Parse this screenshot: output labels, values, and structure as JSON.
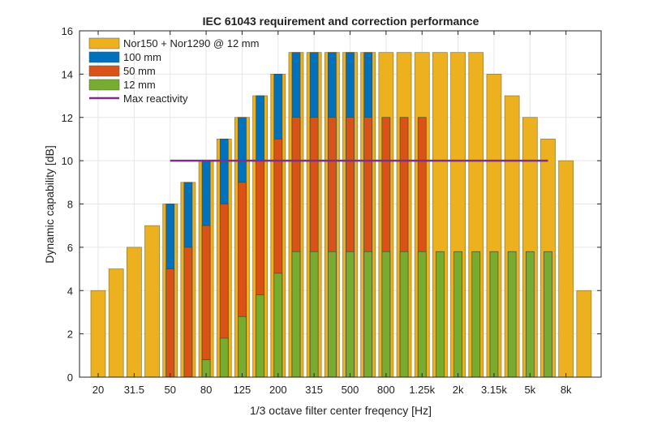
{
  "chart_data": {
    "type": "bar",
    "title": "IEC 61043 requirement and correction performance",
    "xlabel": "1/3 octave filter center freqency [Hz]",
    "ylabel": "Dynamic capability [dB]",
    "ylim": [
      0,
      16
    ],
    "yticks": [
      0,
      2,
      4,
      6,
      8,
      10,
      12,
      14,
      16
    ],
    "grid": true,
    "legend_placement": "top-left",
    "categories": [
      "20",
      "25",
      "31.5",
      "40",
      "50",
      "63",
      "80",
      "100",
      "125",
      "160",
      "200",
      "250",
      "315",
      "400",
      "500",
      "630",
      "800",
      "1k",
      "1.25k",
      "1.6k",
      "2k",
      "2.5k",
      "3.15k",
      "4k",
      "5k",
      "6.3k",
      "8k",
      "10k"
    ],
    "xtick_labels": [
      "20",
      "31.5",
      "50",
      "80",
      "125",
      "200",
      "315",
      "500",
      "800",
      "1.25k",
      "2k",
      "3.15k",
      "5k",
      "8k"
    ],
    "series": [
      {
        "name": "Nor150 + Nor1290 @ 12 mm",
        "color": "#EDB120",
        "style": "wide",
        "values": [
          4,
          5,
          6,
          7,
          8,
          9,
          10,
          11,
          12,
          13,
          14,
          15,
          15,
          15,
          15,
          15,
          15,
          15,
          15,
          15,
          15,
          15,
          14,
          13,
          12,
          11,
          10,
          4
        ]
      },
      {
        "name": "100 mm",
        "color": "#0072BD",
        "style": "narrow",
        "values": [
          null,
          null,
          null,
          null,
          8,
          9,
          10,
          11,
          12,
          13,
          14,
          15,
          15,
          15,
          15,
          15,
          null,
          null,
          null,
          null,
          null,
          null,
          null,
          null,
          null,
          null,
          null,
          null
        ]
      },
      {
        "name": "50 mm",
        "color": "#D95319",
        "style": "narrow",
        "values": [
          null,
          null,
          null,
          null,
          5,
          6,
          7,
          8,
          9,
          10,
          11,
          12,
          12,
          12,
          12,
          12,
          12,
          12,
          12,
          null,
          null,
          null,
          null,
          null,
          null,
          null,
          null,
          null
        ]
      },
      {
        "name": "12 mm",
        "color": "#77AC30",
        "style": "narrow",
        "values": [
          null,
          null,
          null,
          null,
          null,
          null,
          0.8,
          1.8,
          2.8,
          3.8,
          4.8,
          5.8,
          5.8,
          5.8,
          5.8,
          5.8,
          5.8,
          5.8,
          5.8,
          5.8,
          5.8,
          5.8,
          5.8,
          5.8,
          5.8,
          5.8,
          null,
          null
        ]
      },
      {
        "name": "Max reactivity",
        "color": "#7E2F8E",
        "type": "line",
        "x_from": "50",
        "x_to": "6.3k",
        "value": 10
      }
    ]
  }
}
